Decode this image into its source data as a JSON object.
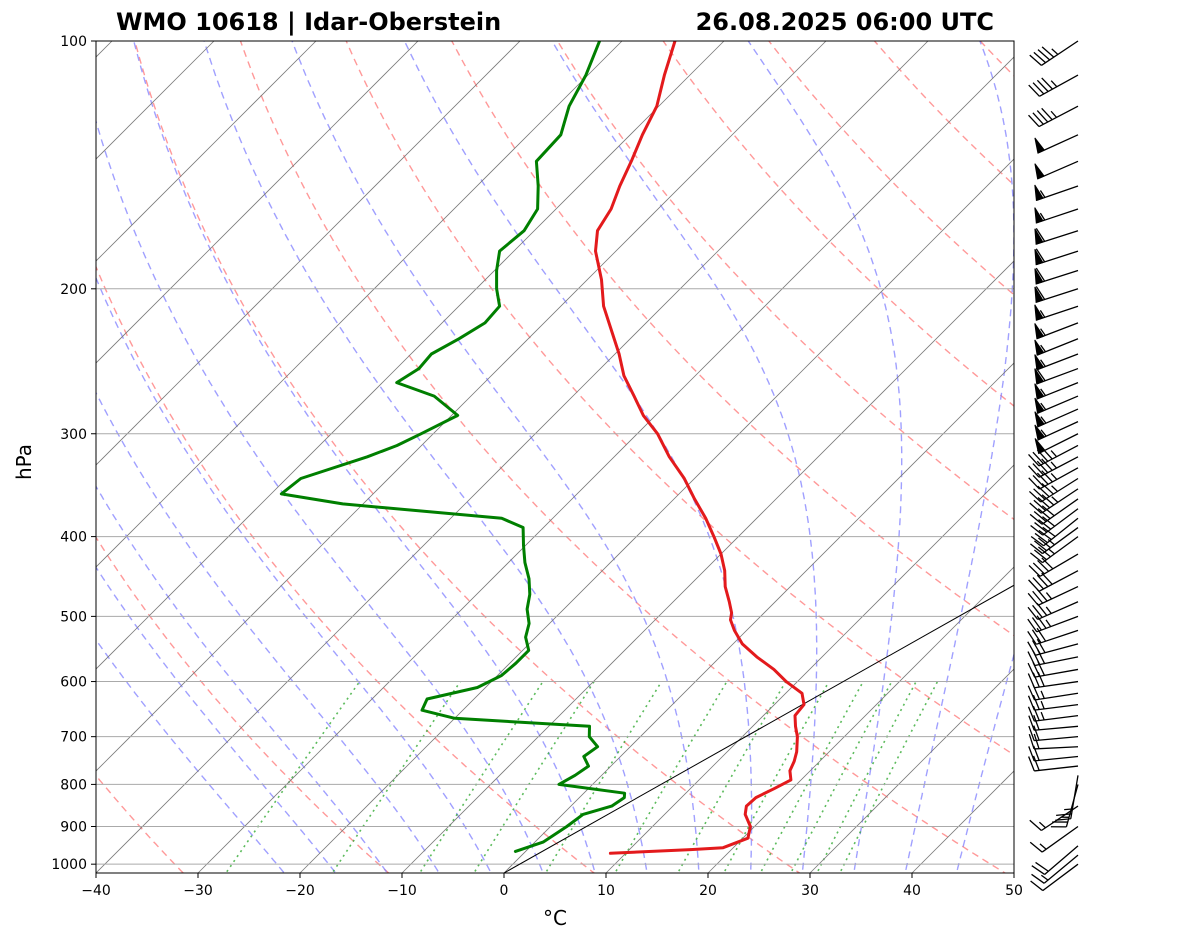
{
  "chart_data": {
    "type": "line",
    "title_left": "WMO 10618 | Idar-Oberstein",
    "title_right": "26.08.2025 06:00 UTC",
    "xlabel": "°C",
    "ylabel": "hPa",
    "xlim": [
      -40,
      50
    ],
    "ylim": [
      1025,
      100
    ],
    "y_scale": "log",
    "skew": true,
    "grid": true,
    "x_ticks": [
      -40,
      -30,
      -20,
      -10,
      0,
      10,
      20,
      30,
      40,
      50
    ],
    "y_ticks": [
      100,
      200,
      300,
      400,
      500,
      600,
      700,
      800,
      900,
      1000
    ],
    "x_tick_labels": [
      "−40",
      "−30",
      "−20",
      "−10",
      "0",
      "10",
      "20",
      "30",
      "40",
      "50"
    ],
    "y_tick_labels": [
      "100",
      "200",
      "300",
      "400",
      "500",
      "600",
      "700",
      "800",
      "900",
      "1000"
    ],
    "series": [
      {
        "key": "temperature",
        "color": "#e31a1c",
        "points": [
          [
            970,
            8.5
          ],
          [
            960,
            16.0
          ],
          [
            955,
            19.0
          ],
          [
            930,
            20.5
          ],
          [
            900,
            19.6
          ],
          [
            870,
            17.9
          ],
          [
            850,
            17.2
          ],
          [
            830,
            17.3
          ],
          [
            810,
            18.2
          ],
          [
            790,
            19.0
          ],
          [
            770,
            18.0
          ],
          [
            750,
            17.5
          ],
          [
            730,
            16.8
          ],
          [
            700,
            15.4
          ],
          [
            680,
            14.2
          ],
          [
            660,
            13.1
          ],
          [
            640,
            12.9
          ],
          [
            620,
            11.6
          ],
          [
            600,
            8.9
          ],
          [
            580,
            6.5
          ],
          [
            560,
            3.6
          ],
          [
            540,
            0.9
          ],
          [
            520,
            -1.2
          ],
          [
            505,
            -2.6
          ],
          [
            495,
            -3.2
          ],
          [
            480,
            -4.5
          ],
          [
            460,
            -6.4
          ],
          [
            440,
            -8.0
          ],
          [
            420,
            -10.0
          ],
          [
            400,
            -12.4
          ],
          [
            380,
            -15.0
          ],
          [
            360,
            -18.0
          ],
          [
            340,
            -21.0
          ],
          [
            320,
            -24.6
          ],
          [
            300,
            -28.0
          ],
          [
            285,
            -31.2
          ],
          [
            270,
            -34.0
          ],
          [
            255,
            -37.0
          ],
          [
            240,
            -39.6
          ],
          [
            225,
            -42.6
          ],
          [
            210,
            -45.8
          ],
          [
            195,
            -48.6
          ],
          [
            180,
            -52.0
          ],
          [
            170,
            -53.8
          ],
          [
            160,
            -54.6
          ],
          [
            150,
            -56.0
          ],
          [
            140,
            -57.3
          ],
          [
            130,
            -58.8
          ],
          [
            120,
            -60.2
          ],
          [
            110,
            -62.5
          ],
          [
            100,
            -64.8
          ]
        ]
      },
      {
        "key": "dewpoint",
        "color": "#007f00",
        "points": [
          [
            965,
            -1.0
          ],
          [
            940,
            0.8
          ],
          [
            900,
            1.6
          ],
          [
            870,
            2.0
          ],
          [
            850,
            4.0
          ],
          [
            830,
            4.4
          ],
          [
            820,
            4.0
          ],
          [
            800,
            -3.3
          ],
          [
            780,
            -2.6
          ],
          [
            760,
            -2.2
          ],
          [
            740,
            -3.6
          ],
          [
            720,
            -3.2
          ],
          [
            700,
            -5.0
          ],
          [
            680,
            -6.0
          ],
          [
            665,
            -20.0
          ],
          [
            650,
            -24.0
          ],
          [
            630,
            -24.6
          ],
          [
            610,
            -20.8
          ],
          [
            590,
            -19.6
          ],
          [
            570,
            -19.4
          ],
          [
            550,
            -19.4
          ],
          [
            530,
            -21.0
          ],
          [
            510,
            -22.0
          ],
          [
            490,
            -23.6
          ],
          [
            470,
            -24.8
          ],
          [
            450,
            -26.4
          ],
          [
            430,
            -28.4
          ],
          [
            410,
            -30.2
          ],
          [
            390,
            -32.0
          ],
          [
            380,
            -35.0
          ],
          [
            365,
            -52.0
          ],
          [
            355,
            -59.0
          ],
          [
            340,
            -58.6
          ],
          [
            320,
            -54.2
          ],
          [
            310,
            -52.4
          ],
          [
            300,
            -51.2
          ],
          [
            285,
            -49.4
          ],
          [
            270,
            -53.6
          ],
          [
            260,
            -58.6
          ],
          [
            250,
            -57.8
          ],
          [
            240,
            -58.0
          ],
          [
            230,
            -56.8
          ],
          [
            220,
            -55.8
          ],
          [
            210,
            -56.0
          ],
          [
            200,
            -58.0
          ],
          [
            190,
            -59.8
          ],
          [
            180,
            -61.4
          ],
          [
            170,
            -61.0
          ],
          [
            160,
            -61.8
          ],
          [
            150,
            -64.0
          ],
          [
            140,
            -66.6
          ],
          [
            130,
            -66.8
          ],
          [
            120,
            -68.8
          ],
          [
            110,
            -70.2
          ],
          [
            100,
            -72.2
          ]
        ]
      }
    ],
    "isotherm_range": [
      -140,
      50,
      10
    ],
    "dry_adiabat_thetas_K": [
      220,
      240,
      260,
      280,
      300,
      320,
      340,
      360,
      380,
      400,
      420,
      440,
      460,
      480,
      500,
      520
    ],
    "moist_adiabat_start_temps_C": [
      -20,
      -15,
      -10,
      -5,
      0,
      5,
      10,
      15,
      20,
      25,
      30,
      35,
      40,
      45
    ],
    "mixing_ratios_gkg": [
      0.4,
      1,
      2,
      3,
      5,
      8,
      12,
      16,
      20,
      24,
      28,
      32
    ],
    "reference_lines": [
      {
        "key": "surface-parcel-line",
        "color": "#000000",
        "points": [
          [
            1025,
            0
          ],
          [
            100,
            63
          ]
        ]
      }
    ],
    "wind_barbs": [
      {
        "p": 1000,
        "u": 8,
        "v": 6
      },
      {
        "p": 975,
        "u": 12,
        "v": 10
      },
      {
        "p": 950,
        "u": 14,
        "v": 12
      },
      {
        "p": 900,
        "u": 14,
        "v": 10
      },
      {
        "p": 850,
        "u": 12,
        "v": 8
      },
      {
        "p": 800,
        "u": 6,
        "v": 22
      },
      {
        "p": 780,
        "u": 4,
        "v": 24
      },
      {
        "p": 760,
        "u": 18,
        "v": 2
      },
      {
        "p": 740,
        "u": 20,
        "v": 2
      },
      {
        "p": 720,
        "u": 20,
        "v": 1
      },
      {
        "p": 700,
        "u": 22,
        "v": 2
      },
      {
        "p": 680,
        "u": 22,
        "v": 2
      },
      {
        "p": 660,
        "u": 24,
        "v": 3
      },
      {
        "p": 640,
        "u": 24,
        "v": 3
      },
      {
        "p": 620,
        "u": 26,
        "v": 4
      },
      {
        "p": 600,
        "u": 28,
        "v": 4
      },
      {
        "p": 580,
        "u": 28,
        "v": 5
      },
      {
        "p": 560,
        "u": 30,
        "v": 6
      },
      {
        "p": 540,
        "u": 30,
        "v": 8
      },
      {
        "p": 520,
        "u": 30,
        "v": 10
      },
      {
        "p": 500,
        "u": 32,
        "v": 12
      },
      {
        "p": 480,
        "u": 32,
        "v": 14
      },
      {
        "p": 460,
        "u": 32,
        "v": 15
      },
      {
        "p": 440,
        "u": 34,
        "v": 18
      },
      {
        "p": 420,
        "u": 34,
        "v": 20
      },
      {
        "p": 400,
        "u": 30,
        "v": 22
      },
      {
        "p": 390,
        "u": 30,
        "v": 22
      },
      {
        "p": 380,
        "u": 30,
        "v": 24
      },
      {
        "p": 370,
        "u": 32,
        "v": 24
      },
      {
        "p": 360,
        "u": 34,
        "v": 24
      },
      {
        "p": 350,
        "u": 36,
        "v": 24
      },
      {
        "p": 340,
        "u": 38,
        "v": 24
      },
      {
        "p": 330,
        "u": 40,
        "v": 22
      },
      {
        "p": 320,
        "u": 42,
        "v": 22
      },
      {
        "p": 310,
        "u": 42,
        "v": 22
      },
      {
        "p": 300,
        "u": 44,
        "v": 22
      },
      {
        "p": 290,
        "u": 48,
        "v": 22
      },
      {
        "p": 280,
        "u": 50,
        "v": 22
      },
      {
        "p": 270,
        "u": 52,
        "v": 22
      },
      {
        "p": 260,
        "u": 50,
        "v": 20
      },
      {
        "p": 250,
        "u": 54,
        "v": 20
      },
      {
        "p": 240,
        "u": 52,
        "v": 20
      },
      {
        "p": 230,
        "u": 50,
        "v": 20
      },
      {
        "p": 220,
        "u": 52,
        "v": 20
      },
      {
        "p": 210,
        "u": 54,
        "v": 18
      },
      {
        "p": 200,
        "u": 56,
        "v": 18
      },
      {
        "p": 190,
        "u": 56,
        "v": 18
      },
      {
        "p": 180,
        "u": 56,
        "v": 18
      },
      {
        "p": 170,
        "u": 56,
        "v": 18
      },
      {
        "p": 160,
        "u": 54,
        "v": 18
      },
      {
        "p": 150,
        "u": 52,
        "v": 18
      },
      {
        "p": 140,
        "u": 46,
        "v": 20
      },
      {
        "p": 130,
        "u": 44,
        "v": 20
      },
      {
        "p": 120,
        "u": 42,
        "v": 22
      },
      {
        "p": 110,
        "u": 40,
        "v": 22
      },
      {
        "p": 100,
        "u": 36,
        "v": 24
      }
    ],
    "wind_units": "knots"
  }
}
